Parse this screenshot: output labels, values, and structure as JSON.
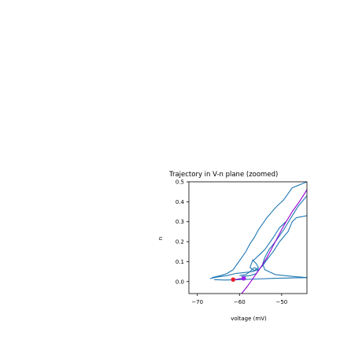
{
  "chart_data": {
    "type": "line",
    "title": "Trajectory in V-n plane (zoomed)",
    "xlabel": "voltage (mV)",
    "ylabel": "n",
    "xlim": [
      -72,
      -44
    ],
    "ylim": [
      -0.06,
      0.5
    ],
    "xticks": [
      {
        "value": -70,
        "label": "−70"
      },
      {
        "value": -60,
        "label": "−60"
      },
      {
        "value": -50,
        "label": "−50"
      }
    ],
    "yticks": [
      {
        "value": 0.0,
        "label": "0.0"
      },
      {
        "value": 0.1,
        "label": "0.1"
      },
      {
        "value": 0.2,
        "label": "0.2"
      },
      {
        "value": 0.3,
        "label": "0.3"
      },
      {
        "value": 0.4,
        "label": "0.4"
      },
      {
        "value": 0.5,
        "label": "0.5"
      }
    ],
    "series": [
      {
        "color": "#1f77b4",
        "points": [
          [
            -66.5,
            0.02
          ],
          [
            -65.5,
            0.025
          ],
          [
            -64.5,
            0.03
          ],
          [
            -63,
            0.04
          ],
          [
            -61.5,
            0.06
          ],
          [
            -60.5,
            0.09
          ],
          [
            -59.5,
            0.12
          ],
          [
            -58.5,
            0.15
          ],
          [
            -57.5,
            0.19
          ],
          [
            -56.5,
            0.22
          ],
          [
            -55.5,
            0.26
          ],
          [
            -54.5,
            0.29
          ],
          [
            -53.5,
            0.32
          ],
          [
            -52.5,
            0.345
          ],
          [
            -51.5,
            0.37
          ],
          [
            -50.5,
            0.39
          ],
          [
            -49.5,
            0.41
          ],
          [
            -48.5,
            0.44
          ],
          [
            -47.5,
            0.47
          ],
          [
            -44,
            0.5
          ]
        ]
      },
      {
        "color": "#1f77b4",
        "points": [
          [
            -44,
            0.33
          ],
          [
            -46.5,
            0.32
          ],
          [
            -47.5,
            0.3
          ],
          [
            -48.5,
            0.25
          ],
          [
            -50.5,
            0.2
          ],
          [
            -52,
            0.15
          ],
          [
            -53.5,
            0.11
          ],
          [
            -54.5,
            0.08
          ],
          [
            -55.5,
            0.06
          ],
          [
            -57,
            0.05
          ],
          [
            -59,
            0.045
          ],
          [
            -61,
            0.04
          ],
          [
            -63,
            0.03
          ],
          [
            -65.5,
            0.022
          ],
          [
            -67,
            0.015
          ]
        ]
      },
      {
        "color": "#1f77b4",
        "points": [
          [
            -44,
            0.43
          ],
          [
            -46,
            0.38
          ],
          [
            -47.5,
            0.33
          ],
          [
            -49.5,
            0.26
          ],
          [
            -51.5,
            0.2
          ],
          [
            -53,
            0.16
          ],
          [
            -54,
            0.12
          ],
          [
            -54.5,
            0.09
          ],
          [
            -54,
            0.06
          ],
          [
            -51.5,
            0.035
          ],
          [
            -47,
            0.025
          ],
          [
            -44,
            0.02
          ]
        ]
      },
      {
        "color": "#1f77b4",
        "points": [
          [
            -44,
            0.02
          ],
          [
            -48,
            0.018
          ],
          [
            -52,
            0.016
          ],
          [
            -56,
            0.013
          ],
          [
            -60,
            0.01
          ],
          [
            -63.5,
            0.008
          ],
          [
            -66,
            0.01
          ]
        ]
      },
      {
        "color": "#1f77b4",
        "points": [
          [
            -57,
            0.11
          ],
          [
            -56,
            0.09
          ],
          [
            -55.5,
            0.07
          ],
          [
            -56.5,
            0.055
          ],
          [
            -57.5,
            0.07
          ],
          [
            -57,
            0.1
          ],
          [
            -55.5,
            0.13
          ],
          [
            -54,
            0.16
          ],
          [
            -53,
            0.19
          ],
          [
            -52,
            0.22
          ],
          [
            -50.5,
            0.27
          ],
          [
            -49,
            0.3
          ]
        ]
      },
      {
        "color": "#1f77b4",
        "points": [
          [
            -60,
            0.03
          ],
          [
            -58.5,
            0.035
          ],
          [
            -57.5,
            0.05
          ],
          [
            -56.5,
            0.07
          ],
          [
            -55.5,
            0.06
          ],
          [
            -56,
            0.04
          ],
          [
            -57.5,
            0.03
          ],
          [
            -59.5,
            0.025
          ]
        ]
      },
      {
        "color": "#9400d3",
        "points": [
          [
            -59.5,
            -0.06
          ],
          [
            -58,
            -0.02
          ],
          [
            -57,
            0.01
          ],
          [
            -56,
            0.04
          ],
          [
            -55,
            0.07
          ],
          [
            -53.5,
            0.12
          ],
          [
            -51.5,
            0.2
          ],
          [
            -49.5,
            0.28
          ],
          [
            -47.5,
            0.35
          ],
          [
            -45.5,
            0.41
          ],
          [
            -44,
            0.46
          ]
        ]
      },
      {
        "color": "#9400d3",
        "points": [
          [
            -62,
            0.008
          ],
          [
            -61,
            0.01
          ],
          [
            -60,
            0.014
          ],
          [
            -59,
            0.016
          ]
        ]
      }
    ],
    "markers": [
      {
        "x": -61.5,
        "y": 0.01,
        "color": "#e8202a"
      },
      {
        "x": -59.0,
        "y": 0.016,
        "color": "#a020f0"
      }
    ]
  }
}
